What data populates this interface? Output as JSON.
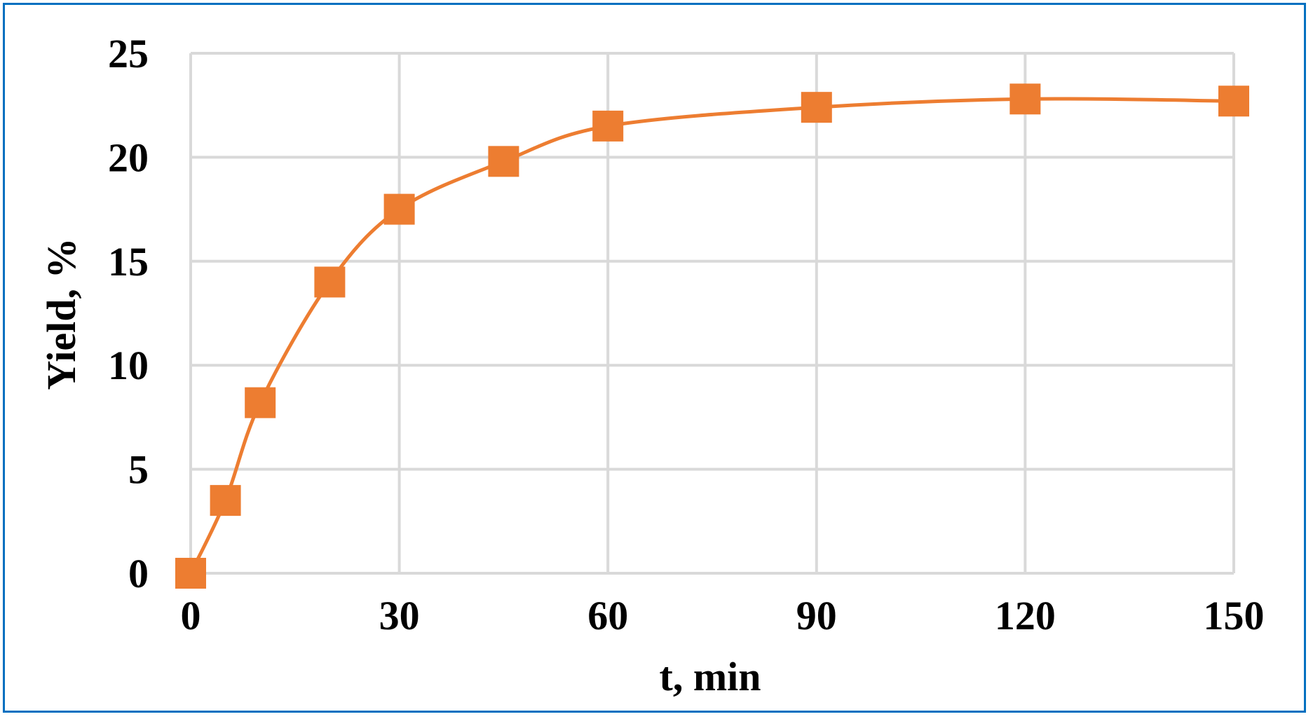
{
  "chart_data": {
    "type": "scatter",
    "title": "",
    "xlabel": "t, min",
    "ylabel": "Yield, %",
    "xlim": [
      0,
      150
    ],
    "ylim": [
      0,
      25
    ],
    "x_ticks": [
      0,
      30,
      60,
      90,
      120,
      150
    ],
    "y_ticks": [
      0,
      5,
      10,
      15,
      20,
      25
    ],
    "x_tick_labels": [
      "0",
      "30",
      "60",
      "90",
      "120",
      "150"
    ],
    "y_tick_labels": [
      "0",
      "5",
      "10",
      "15",
      "20",
      "25"
    ],
    "grid": true,
    "legend": false,
    "line_style": "smoothed",
    "marker": "square",
    "series": [
      {
        "color": "#ED7D31",
        "x": [
          0,
          5,
          10,
          20,
          30,
          45,
          60,
          90,
          120,
          150
        ],
        "y": [
          0,
          3.5,
          8.2,
          14.0,
          17.5,
          19.8,
          21.5,
          22.4,
          22.8,
          22.7
        ]
      }
    ]
  },
  "colors": {
    "frame": "#0070C0",
    "grid": "#D9D9D9",
    "series": "#ED7D31"
  }
}
